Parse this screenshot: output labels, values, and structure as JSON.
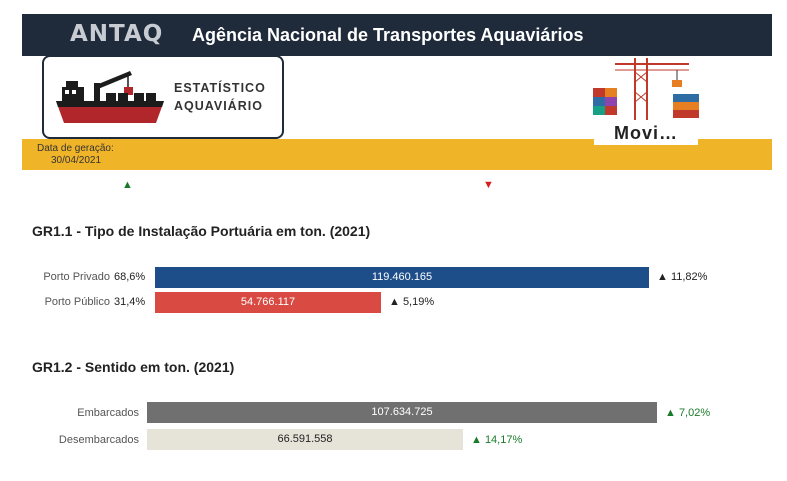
{
  "header": {
    "logo_text": "ANTAQ",
    "agency_name": "Agência Nacional de Transportes Aquaviários"
  },
  "logo": {
    "line1": "Estatístico",
    "line2": "Aquaviário"
  },
  "generation": {
    "label": "Data de geração:",
    "date": "30/04/2021"
  },
  "movi_button": "Movi…",
  "indicators": {
    "up": "▲",
    "down": "▼"
  },
  "colors": {
    "header_bg": "#1f2a3a",
    "accent_yellow": "#f0b429",
    "privado": "#1d4e89",
    "publico": "#d94a43",
    "embarcados": "#707070",
    "desembarcados": "#e6e3d9",
    "positive": "#1a7a2a",
    "negative": "#d62020"
  },
  "chart_data": [
    {
      "type": "bar",
      "orientation": "horizontal",
      "title": "GR1.1 - Tipo de Instalação Portuária em ton. (2021)",
      "categories": [
        "Porto Privado",
        "Porto Público"
      ],
      "shares": [
        "68,6%",
        "31,4%"
      ],
      "values": [
        119460165,
        54766117
      ],
      "value_labels": [
        "119.460.165",
        "54.766.117"
      ],
      "changes": [
        "▲ 11,82%",
        "▲ 5,19%"
      ]
    },
    {
      "type": "bar",
      "orientation": "horizontal",
      "title": "GR1.2 - Sentido em ton.  (2021)",
      "categories": [
        "Embarcados",
        "Desembarcados"
      ],
      "values": [
        107634725,
        66591558
      ],
      "value_labels": [
        "107.634.725",
        "66.591.558"
      ],
      "changes": [
        "▲ 7,02%",
        "▲ 14,17%"
      ]
    }
  ]
}
